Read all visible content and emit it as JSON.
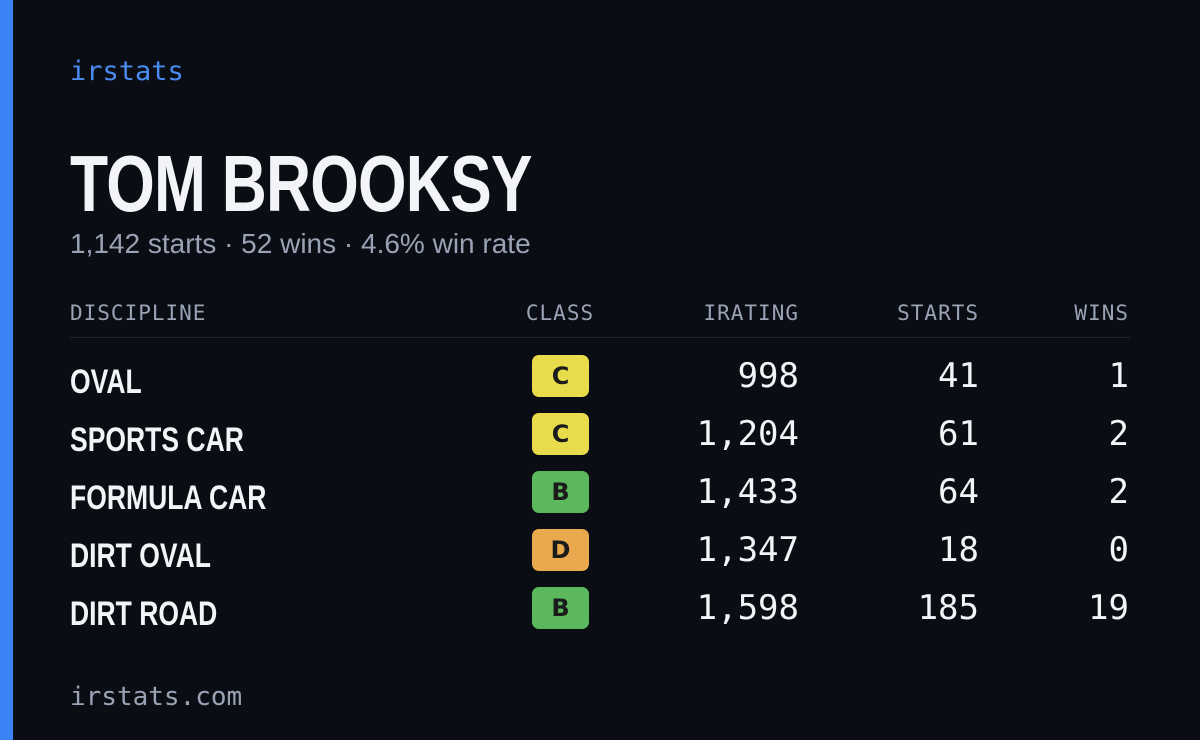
{
  "brand": "irstats",
  "driver": {
    "name": "TOM BROOKSY",
    "summary": "1,142 starts · 52 wins · 4.6% win rate"
  },
  "table": {
    "headers": [
      "DISCIPLINE",
      "CLASS",
      "IRATING",
      "STARTS",
      "WINS"
    ],
    "rows": [
      {
        "discipline": "OVAL",
        "class": "C",
        "color": "#e9dc4c",
        "irating": "998",
        "starts": "41",
        "wins": "1"
      },
      {
        "discipline": "SPORTS CAR",
        "class": "C",
        "color": "#e9dc4c",
        "irating": "1,204",
        "starts": "61",
        "wins": "2"
      },
      {
        "discipline": "FORMULA CAR",
        "class": "B",
        "color": "#5cb85c",
        "irating": "1,433",
        "starts": "64",
        "wins": "2"
      },
      {
        "discipline": "DIRT OVAL",
        "class": "D",
        "color": "#e9a94c",
        "irating": "1,347",
        "starts": "18",
        "wins": "0"
      },
      {
        "discipline": "DIRT ROAD",
        "class": "B",
        "color": "#5cb85c",
        "irating": "1,598",
        "starts": "185",
        "wins": "19"
      }
    ]
  },
  "footer": "irstats.com"
}
